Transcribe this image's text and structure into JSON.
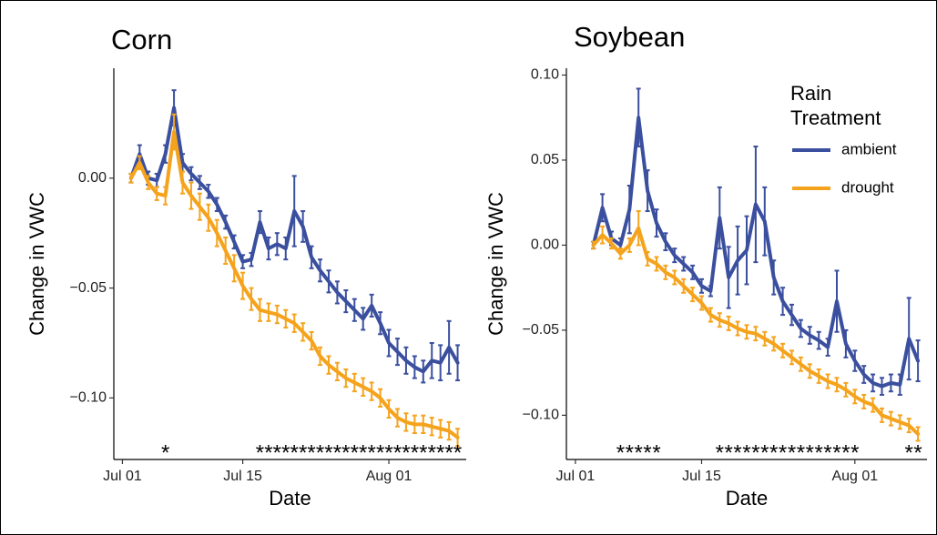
{
  "chart_data": [
    {
      "type": "line",
      "title": "Corn",
      "x_label": "Date",
      "y_label": "Change in VWC",
      "x": [
        "Jul 02",
        "Jul 03",
        "Jul 04",
        "Jul 05",
        "Jul 06",
        "Jul 07",
        "Jul 08",
        "Jul 09",
        "Jul 10",
        "Jul 11",
        "Jul 12",
        "Jul 13",
        "Jul 14",
        "Jul 15",
        "Jul 16",
        "Jul 17",
        "Jul 18",
        "Jul 19",
        "Jul 20",
        "Jul 21",
        "Jul 22",
        "Jul 23",
        "Jul 24",
        "Jul 25",
        "Jul 26",
        "Jul 27",
        "Jul 28",
        "Jul 29",
        "Jul 30",
        "Jul 31",
        "Aug 01",
        "Aug 02",
        "Aug 03",
        "Aug 04",
        "Aug 05",
        "Aug 06",
        "Aug 07",
        "Aug 08",
        "Aug 09"
      ],
      "series": [
        {
          "name": "ambient",
          "color": "#3b4f9f",
          "values": [
            0.0,
            0.011,
            0.0,
            -0.001,
            0.011,
            0.032,
            0.007,
            0.002,
            -0.002,
            -0.006,
            -0.012,
            -0.02,
            -0.029,
            -0.038,
            -0.037,
            -0.02,
            -0.032,
            -0.03,
            -0.032,
            -0.015,
            -0.022,
            -0.036,
            -0.042,
            -0.047,
            -0.052,
            -0.056,
            -0.06,
            -0.064,
            -0.058,
            -0.066,
            -0.075,
            -0.079,
            -0.083,
            -0.086,
            -0.088,
            -0.083,
            -0.084,
            -0.077,
            -0.084
          ],
          "errors": [
            0.002,
            0.004,
            0.003,
            0.003,
            0.004,
            0.008,
            0.004,
            0.003,
            0.003,
            0.003,
            0.003,
            0.003,
            0.003,
            0.003,
            0.003,
            0.005,
            0.005,
            0.005,
            0.005,
            0.016,
            0.007,
            0.005,
            0.005,
            0.005,
            0.005,
            0.005,
            0.005,
            0.005,
            0.005,
            0.005,
            0.006,
            0.006,
            0.006,
            0.005,
            0.005,
            0.008,
            0.008,
            0.012,
            0.008
          ]
        },
        {
          "name": "drought",
          "color": "#f5a31c",
          "values": [
            0.0,
            0.007,
            -0.002,
            -0.007,
            -0.008,
            0.021,
            -0.002,
            -0.008,
            -0.013,
            -0.018,
            -0.025,
            -0.033,
            -0.041,
            -0.049,
            -0.055,
            -0.06,
            -0.061,
            -0.062,
            -0.064,
            -0.066,
            -0.07,
            -0.074,
            -0.081,
            -0.085,
            -0.088,
            -0.091,
            -0.093,
            -0.095,
            -0.097,
            -0.1,
            -0.105,
            -0.109,
            -0.111,
            -0.112,
            -0.112,
            -0.113,
            -0.114,
            -0.115,
            -0.118
          ],
          "errors": [
            0.002,
            0.003,
            0.003,
            0.003,
            0.004,
            0.008,
            0.005,
            0.006,
            0.006,
            0.006,
            0.006,
            0.006,
            0.006,
            0.006,
            0.005,
            0.005,
            0.004,
            0.004,
            0.004,
            0.004,
            0.004,
            0.004,
            0.004,
            0.004,
            0.004,
            0.004,
            0.004,
            0.004,
            0.004,
            0.004,
            0.004,
            0.004,
            0.004,
            0.004,
            0.004,
            0.004,
            0.004,
            0.004,
            0.004
          ]
        }
      ],
      "significance_label": "*",
      "significant_dates": [
        "Jul 06",
        "Jul 17",
        "Jul 18",
        "Jul 19",
        "Jul 20",
        "Jul 21",
        "Jul 22",
        "Jul 23",
        "Jul 24",
        "Jul 25",
        "Jul 26",
        "Jul 27",
        "Jul 28",
        "Jul 29",
        "Jul 30",
        "Jul 31",
        "Aug 01",
        "Aug 02",
        "Aug 03",
        "Aug 04",
        "Aug 05",
        "Aug 06",
        "Aug 07",
        "Aug 08",
        "Aug 09"
      ],
      "xlim": [
        "Jun 30",
        "Aug 10"
      ],
      "xticks": [
        "Jul 01",
        "Jul 15",
        "Aug 01"
      ],
      "ylim": [
        -0.128,
        0.05
      ],
      "yticks": [
        {
          "value": -0.1,
          "label": "−0.10"
        },
        {
          "value": -0.05,
          "label": "−0.05"
        },
        {
          "value": 0,
          "label": "0.00"
        }
      ],
      "grid": false
    },
    {
      "type": "line",
      "title": "Soybean",
      "x_label": "Date",
      "y_label": "Change in VWC",
      "x": [
        "Jul 03",
        "Jul 04",
        "Jul 05",
        "Jul 06",
        "Jul 07",
        "Jul 08",
        "Jul 09",
        "Jul 10",
        "Jul 11",
        "Jul 12",
        "Jul 13",
        "Jul 14",
        "Jul 15",
        "Jul 16",
        "Jul 17",
        "Jul 18",
        "Jul 19",
        "Jul 20",
        "Jul 21",
        "Jul 22",
        "Jul 23",
        "Jul 24",
        "Jul 25",
        "Jul 26",
        "Jul 27",
        "Jul 28",
        "Jul 29",
        "Jul 30",
        "Jul 31",
        "Aug 01",
        "Aug 02",
        "Aug 03",
        "Aug 04",
        "Aug 05",
        "Aug 06",
        "Aug 07",
        "Aug 08"
      ],
      "series": [
        {
          "name": "ambient",
          "color": "#3b4f9f",
          "values": [
            0.0,
            0.022,
            0.004,
            0.0,
            0.021,
            0.075,
            0.032,
            0.013,
            0.002,
            -0.006,
            -0.011,
            -0.016,
            -0.024,
            -0.027,
            0.016,
            -0.019,
            -0.009,
            -0.003,
            0.024,
            0.014,
            -0.019,
            -0.033,
            -0.041,
            -0.049,
            -0.053,
            -0.056,
            -0.06,
            -0.033,
            -0.058,
            -0.068,
            -0.076,
            -0.081,
            -0.083,
            -0.081,
            -0.082,
            -0.055,
            -0.068
          ],
          "errors": [
            0.002,
            0.008,
            0.004,
            0.004,
            0.014,
            0.017,
            0.012,
            0.008,
            0.005,
            0.004,
            0.004,
            0.004,
            0.004,
            0.003,
            0.018,
            0.018,
            0.02,
            0.02,
            0.034,
            0.02,
            0.01,
            0.008,
            0.006,
            0.005,
            0.005,
            0.005,
            0.005,
            0.018,
            0.008,
            0.006,
            0.005,
            0.005,
            0.005,
            0.005,
            0.006,
            0.024,
            0.012
          ]
        },
        {
          "name": "drought",
          "color": "#f5a31c",
          "values": [
            0.0,
            0.006,
            0.001,
            -0.005,
            0.0,
            0.01,
            -0.008,
            -0.011,
            -0.016,
            -0.019,
            -0.024,
            -0.029,
            -0.034,
            -0.041,
            -0.044,
            -0.046,
            -0.049,
            -0.051,
            -0.052,
            -0.055,
            -0.058,
            -0.062,
            -0.066,
            -0.07,
            -0.074,
            -0.077,
            -0.08,
            -0.082,
            -0.085,
            -0.089,
            -0.092,
            -0.094,
            -0.1,
            -0.102,
            -0.104,
            -0.106,
            -0.111
          ],
          "errors": [
            0.002,
            0.005,
            0.003,
            0.003,
            0.004,
            0.01,
            0.004,
            0.004,
            0.004,
            0.004,
            0.004,
            0.004,
            0.004,
            0.004,
            0.004,
            0.004,
            0.004,
            0.004,
            0.004,
            0.004,
            0.004,
            0.004,
            0.004,
            0.004,
            0.004,
            0.004,
            0.004,
            0.004,
            0.004,
            0.004,
            0.004,
            0.004,
            0.004,
            0.004,
            0.004,
            0.004,
            0.004
          ]
        }
      ],
      "significance_label": "*",
      "significant_dates": [
        "Jul 06",
        "Jul 07",
        "Jul 08",
        "Jul 09",
        "Jul 10",
        "Jul 17",
        "Jul 18",
        "Jul 19",
        "Jul 20",
        "Jul 21",
        "Jul 22",
        "Jul 23",
        "Jul 24",
        "Jul 25",
        "Jul 26",
        "Jul 27",
        "Jul 28",
        "Jul 29",
        "Jul 30",
        "Jul 31",
        "Aug 01",
        "Aug 07",
        "Aug 08"
      ],
      "xlim": [
        "Jun 30",
        "Aug 09"
      ],
      "xticks": [
        "Jul 01",
        "Jul 15",
        "Aug 01"
      ],
      "ylim": [
        -0.126,
        0.104
      ],
      "yticks": [
        {
          "value": -0.1,
          "label": "−0.10"
        },
        {
          "value": -0.05,
          "label": "−0.05"
        },
        {
          "value": 0,
          "label": "0.00"
        },
        {
          "value": 0.05,
          "label": "0.05"
        },
        {
          "value": 0.1,
          "label": "0.10"
        }
      ],
      "grid": false,
      "legend_title": "Rain Treatment",
      "legend_position": "top-right"
    }
  ]
}
